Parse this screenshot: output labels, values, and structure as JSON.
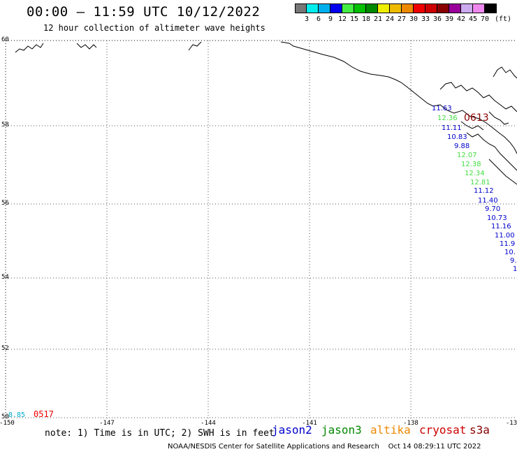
{
  "header": {
    "title": "00:00 – 11:59 UTC 10/12/2022",
    "subtitle": "12 hour collection of altimeter wave heights"
  },
  "legend": {
    "colors": [
      "#777777",
      "#00eeee",
      "#00b0ee",
      "#0000ee",
      "#44ee44",
      "#00c000",
      "#008800",
      "#eeee00",
      "#eebb00",
      "#ee8800",
      "#ee0000",
      "#cc0000",
      "#880000",
      "#990099",
      "#ccaaee",
      "#ee88ee",
      "#000000"
    ],
    "labels": [
      "3",
      "6",
      "9",
      "12",
      "15",
      "18",
      "21",
      "24",
      "27",
      "30",
      "33",
      "36",
      "39",
      "42",
      "45",
      "70"
    ],
    "unit": "(ft)"
  },
  "map": {
    "lat_labels": [
      "60",
      "58",
      "56",
      "54",
      "52",
      "50"
    ],
    "lon_labels": [
      "-150",
      "-147",
      "-144",
      "-141",
      "-138",
      "-13"
    ]
  },
  "wave_heights": [
    {
      "text": "11.63",
      "color": "#0000cc"
    },
    {
      "text": "12.36",
      "color": "#44dd44"
    },
    {
      "text": "11.11",
      "color": "#0000cc"
    },
    {
      "text": "10.83",
      "color": "#0000cc"
    },
    {
      "text": "9.88",
      "color": "#0000cc"
    },
    {
      "text": "12.07",
      "color": "#44dd44"
    },
    {
      "text": "12.38",
      "color": "#44dd44"
    },
    {
      "text": "12.34",
      "color": "#44dd44"
    },
    {
      "text": "12.81",
      "color": "#44dd44"
    },
    {
      "text": "11.12",
      "color": "#0000cc"
    },
    {
      "text": "11.40",
      "color": "#0000cc"
    },
    {
      "text": "9.70",
      "color": "#0000cc"
    },
    {
      "text": "10.73",
      "color": "#0000cc"
    },
    {
      "text": "11.16",
      "color": "#0000cc"
    },
    {
      "text": "11.00",
      "color": "#0000cc"
    },
    {
      "text": "11.9",
      "color": "#0000cc"
    },
    {
      "text": "10.",
      "color": "#0000cc"
    },
    {
      "text": "9.",
      "color": "#0000cc"
    },
    {
      "text": "1",
      "color": "#0000cc"
    }
  ],
  "pass_label": {
    "text": "0613",
    "color": "#880000"
  },
  "corner": {
    "value": "8.85",
    "value_color": "#00aacc",
    "time": "0517",
    "time_color": "#ee0000"
  },
  "footer": {
    "note": "note: 1) Time is in UTC; 2) SWH is in feet",
    "satellites": [
      {
        "name": "jason2",
        "color": "#0000cc"
      },
      {
        "name": "jason3",
        "color": "#008800"
      },
      {
        "name": "altika",
        "color": "#ee8800"
      },
      {
        "name": "cryosat",
        "color": "#cc0000"
      },
      {
        "name": "s3a",
        "color": "#880000"
      }
    ],
    "credit": "NOAA/NESDIS Center for Satellite Applications and Research",
    "timestamp": "Oct 14 08:29:11 UTC 2022"
  }
}
